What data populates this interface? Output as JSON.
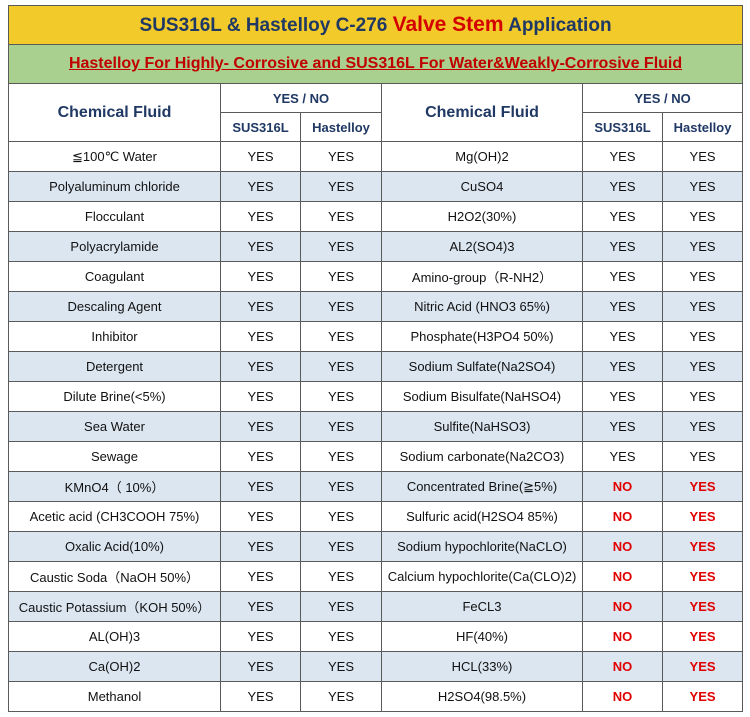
{
  "title": {
    "part1": "SUS316L & Hastelloy C-276 ",
    "accent": "Valve Stem",
    "part2": " Application"
  },
  "subtitle": "Hastelloy For Highly- Corrosive and SUS316L For Water&Weakly-Corrosive Fluid",
  "headers": {
    "chemical_fluid": "Chemical Fluid",
    "yes_no": "YES / NO",
    "sus316l": "SUS316L",
    "hastelloy": "Hastelloy"
  },
  "rows": [
    {
      "left": {
        "fluid": "≦100℃ Water",
        "sus": "YES",
        "hast": "YES"
      },
      "right": {
        "fluid": "Mg(OH)2",
        "sus": "YES",
        "hast": "YES"
      }
    },
    {
      "left": {
        "fluid": "Polyaluminum chloride",
        "sus": "YES",
        "hast": "YES"
      },
      "right": {
        "fluid": "CuSO4",
        "sus": "YES",
        "hast": "YES"
      }
    },
    {
      "left": {
        "fluid": "Flocculant",
        "sus": "YES",
        "hast": "YES"
      },
      "right": {
        "fluid": "H2O2(30%)",
        "sus": "YES",
        "hast": "YES"
      }
    },
    {
      "left": {
        "fluid": "Polyacrylamide",
        "sus": "YES",
        "hast": "YES"
      },
      "right": {
        "fluid": "AL2(SO4)3",
        "sus": "YES",
        "hast": "YES"
      }
    },
    {
      "left": {
        "fluid": "Coagulant",
        "sus": "YES",
        "hast": "YES"
      },
      "right": {
        "fluid": "Amino-group（R-NH2）",
        "sus": "YES",
        "hast": "YES"
      }
    },
    {
      "left": {
        "fluid": "Descaling Agent",
        "sus": "YES",
        "hast": "YES"
      },
      "right": {
        "fluid": "Nitric Acid (HNO3 65%)",
        "sus": "YES",
        "hast": "YES"
      }
    },
    {
      "left": {
        "fluid": "Inhibitor",
        "sus": "YES",
        "hast": "YES"
      },
      "right": {
        "fluid": "Phosphate(H3PO4 50%)",
        "sus": "YES",
        "hast": "YES"
      }
    },
    {
      "left": {
        "fluid": "Detergent",
        "sus": "YES",
        "hast": "YES"
      },
      "right": {
        "fluid": "Sodium Sulfate(Na2SO4)",
        "sus": "YES",
        "hast": "YES"
      }
    },
    {
      "left": {
        "fluid": "Dilute Brine(<5%)",
        "sus": "YES",
        "hast": "YES"
      },
      "right": {
        "fluid": "Sodium Bisulfate(NaHSO4)",
        "sus": "YES",
        "hast": "YES"
      }
    },
    {
      "left": {
        "fluid": "Sea Water",
        "sus": "YES",
        "hast": "YES"
      },
      "right": {
        "fluid": "Sulfite(NaHSO3)",
        "sus": "YES",
        "hast": "YES"
      }
    },
    {
      "left": {
        "fluid": "Sewage",
        "sus": "YES",
        "hast": "YES"
      },
      "right": {
        "fluid": "Sodium carbonate(Na2CO3)",
        "sus": "YES",
        "hast": "YES"
      }
    },
    {
      "left": {
        "fluid": "KMnO4（ 10%）",
        "sus": "YES",
        "hast": "YES"
      },
      "right": {
        "fluid": "Concentrated Brine(≧5%)",
        "sus": "NO",
        "hast": "YES"
      }
    },
    {
      "left": {
        "fluid": "Acetic acid (CH3COOH 75%)",
        "sus": "YES",
        "hast": "YES"
      },
      "right": {
        "fluid": "Sulfuric acid(H2SO4 85%)",
        "sus": "NO",
        "hast": "YES"
      }
    },
    {
      "left": {
        "fluid": "Oxalic Acid(10%)",
        "sus": "YES",
        "hast": "YES"
      },
      "right": {
        "fluid": "Sodium hypochlorite(NaCLO)",
        "sus": "NO",
        "hast": "YES"
      }
    },
    {
      "left": {
        "fluid": "Caustic Soda（NaOH 50%）",
        "sus": "YES",
        "hast": "YES"
      },
      "right": {
        "fluid": "Calcium hypochlorite(Ca(CLO)2)",
        "sus": "NO",
        "hast": "YES"
      }
    },
    {
      "left": {
        "fluid": "Caustic Potassium（KOH 50%）",
        "sus": "YES",
        "hast": "YES"
      },
      "right": {
        "fluid": "FeCL3",
        "sus": "NO",
        "hast": "YES"
      }
    },
    {
      "left": {
        "fluid": "AL(OH)3",
        "sus": "YES",
        "hast": "YES"
      },
      "right": {
        "fluid": "HF(40%)",
        "sus": "NO",
        "hast": "YES"
      }
    },
    {
      "left": {
        "fluid": "Ca(OH)2",
        "sus": "YES",
        "hast": "YES"
      },
      "right": {
        "fluid": "HCL(33%)",
        "sus": "NO",
        "hast": "YES"
      }
    },
    {
      "left": {
        "fluid": "Methanol",
        "sus": "YES",
        "hast": "YES"
      },
      "right": {
        "fluid": "H2SO4(98.5%)",
        "sus": "NO",
        "hast": "YES"
      }
    }
  ],
  "colors": {
    "title_bg": "#f2ca2a",
    "subtitle_bg": "#a9d08e",
    "alt_row_bg": "#dce6f1",
    "header_text": "#1f3864",
    "accent_red": "#d40000",
    "no_red": "#e00000"
  }
}
